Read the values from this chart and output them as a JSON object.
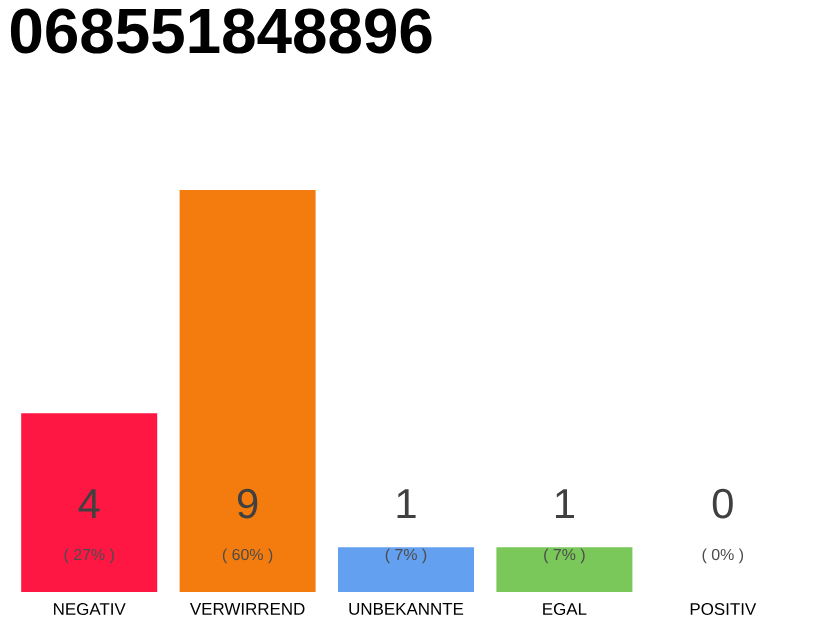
{
  "chart_data": {
    "type": "bar",
    "title": "068551848896",
    "categories": [
      "NEGATIV",
      "VERWIRREND",
      "UNBEKANNTE",
      "EGAL",
      "POSITIV"
    ],
    "values": [
      4,
      9,
      1,
      1,
      0
    ],
    "colors": [
      "#ff1744",
      "#f47c0e",
      "#64a0f0",
      "#7ac85a",
      "#cccccc"
    ],
    "data_labels": true,
    "annotations": [
      "( 27% )",
      "( 60% )",
      "( 7% )",
      "( 7% )",
      "( 0% )"
    ]
  }
}
